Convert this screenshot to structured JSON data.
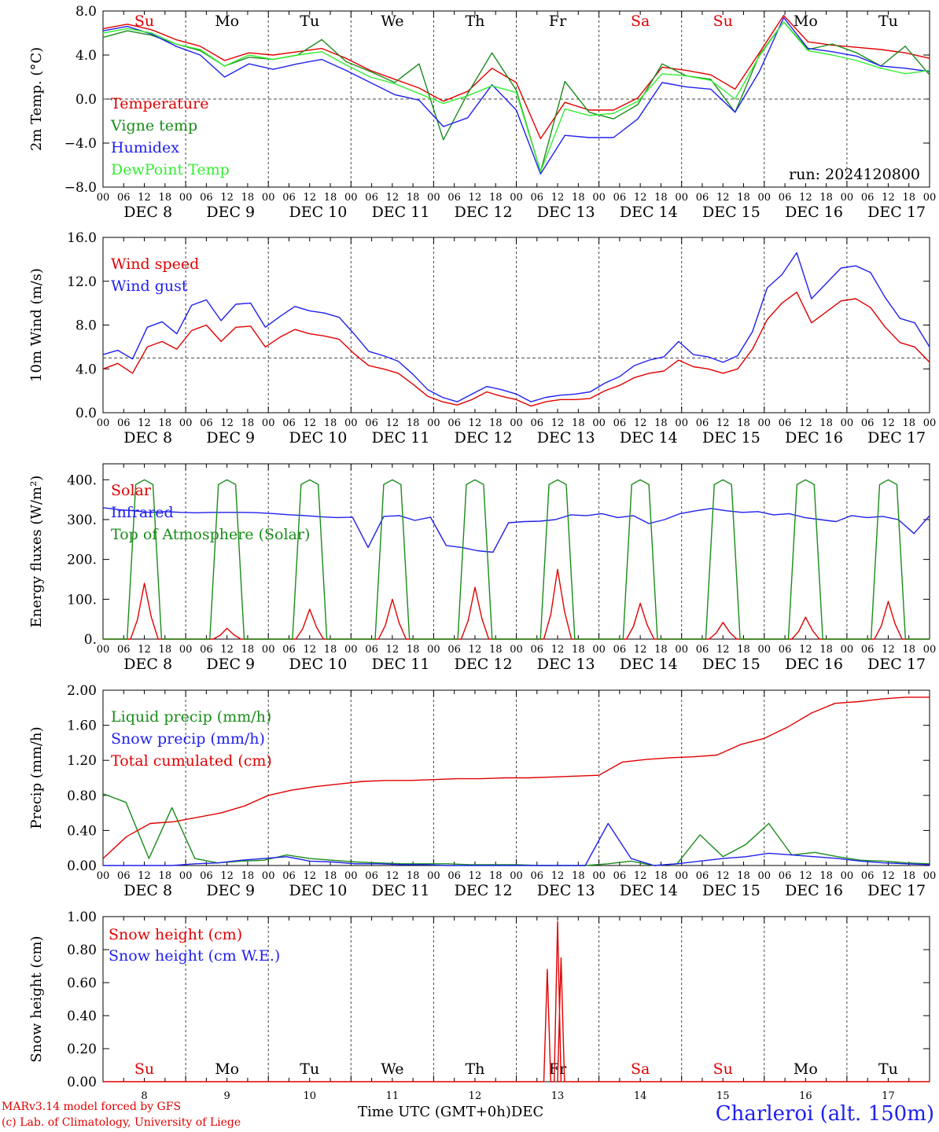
{
  "chart_data": [
    {
      "type": "line",
      "ylabel": "2m Temp. (°C)",
      "ylim": [
        -8,
        8
      ],
      "yticks": [
        "8.0",
        "4.0",
        "0.0",
        "−4.0",
        "−8.0"
      ],
      "ytick_values": [
        8,
        4,
        0,
        -4,
        -8
      ],
      "hline": 0,
      "annotation": "run: 2024120800",
      "weekday_labels": [
        "Su",
        "Mo",
        "Tu",
        "We",
        "Th",
        "Fr",
        "Sa",
        "Su",
        "Mo",
        "Tu"
      ],
      "x_hours": [
        0,
        6,
        12,
        18,
        24,
        30,
        36,
        42,
        48,
        54,
        60,
        66,
        72,
        78,
        84,
        90,
        96,
        102,
        108,
        114,
        120,
        126,
        132,
        138,
        144,
        150,
        156,
        162,
        168,
        174,
        180,
        186,
        192,
        198,
        204,
        210,
        216,
        222,
        228,
        234,
        240
      ],
      "series": [
        {
          "name": "Temperature",
          "color": "#e00000",
          "values": [
            6.4,
            6.8,
            6.3,
            5.4,
            4.8,
            3.5,
            4.2,
            4.0,
            4.3,
            4.6,
            3.7,
            2.6,
            1.8,
            1.0,
            -0.2,
            0.7,
            2.8,
            1.5,
            -3.6,
            -0.3,
            -1.0,
            -1.0,
            0.1,
            2.9,
            2.6,
            2.2,
            0.9,
            4.2,
            7.6,
            5.2,
            4.9,
            4.7,
            4.5,
            4.2,
            3.7
          ]
        },
        {
          "name": "Vigne temp",
          "color": "#1a8c1a",
          "values": [
            5.6,
            6.2,
            5.8,
            5.0,
            4.4,
            3.0,
            3.8,
            3.6,
            4.0,
            5.4,
            3.4,
            2.5,
            1.5,
            3.2,
            -3.7,
            0.5,
            4.2,
            0.8,
            -6.6,
            1.6,
            -1.2,
            -1.8,
            -0.5,
            3.2,
            2.1,
            1.8,
            -1.2,
            4.0,
            7.0,
            4.5,
            5.0,
            4.2,
            3.0,
            4.8,
            2.2
          ]
        },
        {
          "name": "Humidex",
          "color": "#2020ee",
          "values": [
            6.2,
            6.6,
            5.9,
            4.8,
            4.0,
            2.0,
            3.2,
            2.7,
            3.2,
            3.6,
            2.6,
            1.5,
            0.4,
            -0.1,
            -2.5,
            -1.7,
            1.3,
            -1.0,
            -6.8,
            -3.3,
            -3.5,
            -3.5,
            -1.8,
            1.5,
            1.1,
            0.9,
            -1.2,
            2.5,
            7.4,
            4.6,
            4.3,
            3.9,
            3.0,
            2.8,
            2.5
          ]
        },
        {
          "name": "DewPoint Temp",
          "color": "#33ee33",
          "values": [
            6.0,
            6.4,
            6.0,
            5.0,
            4.5,
            3.0,
            4.0,
            3.6,
            4.0,
            4.3,
            3.1,
            2.0,
            1.4,
            0.5,
            -0.4,
            0.3,
            1.2,
            0.6,
            -6.6,
            -0.9,
            -1.5,
            -1.3,
            -0.2,
            2.3,
            2.1,
            1.7,
            0.0,
            3.9,
            7.0,
            4.4,
            4.0,
            3.5,
            2.8,
            2.3,
            2.6
          ]
        }
      ]
    },
    {
      "type": "line",
      "ylabel": "10m Wind (m/s)",
      "ylim": [
        0,
        16
      ],
      "yticks": [
        "16.0",
        "12.0",
        "8.0",
        "4.0",
        "0.0"
      ],
      "ytick_values": [
        16,
        12,
        8,
        4,
        0
      ],
      "hline": 5,
      "series": [
        {
          "name": "Wind speed",
          "color": "#e00000",
          "values": [
            4.0,
            4.5,
            3.6,
            6.0,
            6.5,
            5.8,
            7.5,
            8.0,
            6.5,
            7.8,
            7.9,
            6.0,
            6.9,
            7.6,
            7.2,
            7.0,
            6.7,
            5.4,
            4.3,
            4.0,
            3.6,
            2.6,
            1.5,
            1.0,
            0.7,
            1.2,
            1.9,
            1.5,
            1.2,
            0.6,
            1.0,
            1.2,
            1.2,
            1.3,
            2.0,
            2.5,
            3.2,
            3.6,
            3.8,
            4.8,
            4.2,
            4.0,
            3.6,
            4.0,
            5.8,
            8.5,
            10.0,
            11.0,
            8.2,
            9.2,
            10.2,
            10.4,
            9.6,
            7.8,
            6.4,
            6.0,
            4.6
          ]
        },
        {
          "name": "Wind gust",
          "color": "#2020ee",
          "values": [
            5.3,
            5.7,
            4.9,
            7.8,
            8.3,
            7.2,
            9.8,
            10.3,
            8.4,
            9.9,
            10.0,
            7.8,
            8.8,
            9.7,
            9.3,
            9.1,
            8.7,
            7.2,
            5.6,
            5.2,
            4.7,
            3.5,
            2.1,
            1.4,
            1.0,
            1.7,
            2.4,
            2.1,
            1.7,
            1.0,
            1.4,
            1.6,
            1.7,
            1.9,
            2.7,
            3.3,
            4.3,
            4.8,
            5.1,
            6.5,
            5.3,
            5.1,
            4.6,
            5.2,
            7.4,
            11.4,
            12.6,
            14.6,
            10.4,
            11.8,
            13.2,
            13.4,
            12.8,
            10.5,
            8.6,
            8.2,
            6.0
          ]
        }
      ]
    },
    {
      "type": "line",
      "ylabel": "Energy fluxes (W/m²)",
      "ylim": [
        0,
        440
      ],
      "yticks": [
        "400.",
        "300.",
        "200.",
        "100.",
        "0."
      ],
      "ytick_values": [
        400,
        300,
        200,
        100,
        0
      ],
      "series": [
        {
          "name": "Solar",
          "color": "#e00000",
          "daily_peaks": [
            140,
            27,
            75,
            100,
            130,
            175,
            90,
            42,
            55,
            95
          ]
        },
        {
          "name": "Infrared",
          "color": "#2020ee",
          "values": [
            330,
            325,
            322,
            318,
            320,
            318,
            317,
            318,
            318,
            318,
            317,
            315,
            312,
            310,
            307,
            305,
            306,
            230,
            308,
            310,
            298,
            306,
            235,
            230,
            222,
            218,
            292,
            295,
            296,
            300,
            312,
            310,
            315,
            305,
            310,
            290,
            300,
            315,
            322,
            328,
            322,
            318,
            320,
            312,
            315,
            305,
            300,
            295,
            310,
            305,
            308,
            300,
            265,
            310
          ]
        },
        {
          "name": "Top of Atmosphere (Solar)",
          "color": "#1a8c1a",
          "daily_peak": 400
        }
      ]
    },
    {
      "type": "line",
      "ylabel": "Precip (mm/h)",
      "ylim": [
        0,
        2
      ],
      "yticks": [
        "2.00",
        "1.60",
        "1.20",
        "0.80",
        "0.40",
        "0.00"
      ],
      "ytick_values": [
        2.0,
        1.6,
        1.2,
        0.8,
        0.4,
        0.0
      ],
      "series": [
        {
          "name": "Liquid precip (mm/h)",
          "color": "#1a8c1a",
          "values": [
            0.82,
            0.72,
            0.08,
            0.66,
            0.08,
            0.03,
            0.05,
            0.06,
            0.12,
            0.08,
            0.06,
            0.04,
            0.03,
            0.02,
            0.02,
            0.02,
            0.01,
            0.01,
            0.01,
            0.0,
            0.0,
            0.0,
            0.02,
            0.05,
            0.0,
            0.02,
            0.35,
            0.1,
            0.24,
            0.48,
            0.12,
            0.15,
            0.1,
            0.06,
            0.05,
            0.03,
            0.02
          ]
        },
        {
          "name": "Snow precip (mm/h)",
          "color": "#2020ee",
          "values": [
            0.0,
            0.0,
            0.0,
            0.0,
            0.02,
            0.03,
            0.06,
            0.08,
            0.1,
            0.05,
            0.04,
            0.02,
            0.02,
            0.01,
            0.01,
            0.0,
            0.0,
            0.0,
            0.0,
            0.0,
            0.0,
            0.0,
            0.48,
            0.08,
            0.0,
            0.02,
            0.05,
            0.08,
            0.1,
            0.14,
            0.12,
            0.1,
            0.08,
            0.05,
            0.03,
            0.02,
            0.01
          ]
        },
        {
          "name": "Total cumulated (cm)",
          "color": "#e00000",
          "values": [
            0.08,
            0.33,
            0.48,
            0.5,
            0.55,
            0.6,
            0.68,
            0.8,
            0.86,
            0.9,
            0.93,
            0.96,
            0.97,
            0.97,
            0.98,
            0.99,
            0.99,
            1.0,
            1.0,
            1.01,
            1.02,
            1.03,
            1.18,
            1.21,
            1.23,
            1.24,
            1.26,
            1.38,
            1.45,
            1.58,
            1.74,
            1.85,
            1.87,
            1.9,
            1.92,
            1.92
          ]
        }
      ]
    },
    {
      "type": "line",
      "ylabel": "Snow height (cm)",
      "ylim": [
        0,
        1
      ],
      "yticks": [
        "1.00",
        "0.80",
        "0.60",
        "0.40",
        "0.20",
        "0.00"
      ],
      "ytick_values": [
        1.0,
        0.8,
        0.6,
        0.4,
        0.2,
        0.0
      ],
      "bottom_weekdays": [
        "Su",
        "Mo",
        "Tu",
        "We",
        "Th",
        "Fr",
        "Sa",
        "Su",
        "Mo",
        "Tu"
      ],
      "bottom_day_numbers": [
        "8",
        "9",
        "10",
        "11",
        "12",
        "13",
        "14",
        "15",
        "16",
        "17"
      ],
      "series": [
        {
          "name": "Snow height (cm)",
          "color": "#e00000",
          "spikes": [
            {
              "hour": 129,
              "value": 0.68
            },
            {
              "hour": 132,
              "value": 0.97
            },
            {
              "hour": 133,
              "value": 0.75
            }
          ]
        },
        {
          "name": "Snow height (cm W.E.)",
          "color": "#2020ee",
          "values": []
        }
      ]
    }
  ],
  "x_axis": {
    "hour_ticks": [
      "00",
      "06",
      "12",
      "18"
    ],
    "final_tick": "00",
    "dates": [
      "DEC  8",
      "DEC  9",
      "DEC 10",
      "DEC 11",
      "DEC 12",
      "DEC 13",
      "DEC 14",
      "DEC 15",
      "DEC 16",
      "DEC 17"
    ],
    "day_count": 10,
    "label": "Time UTC (GMT+0h)",
    "label_suffix": "DEC"
  },
  "weekday_colors": {
    "weekend": "#e00000",
    "weekday": "#000000"
  },
  "weekend_flags": [
    true,
    false,
    false,
    false,
    false,
    false,
    true,
    true,
    false,
    false
  ],
  "footer": {
    "credit_line1": "MARv3.14 model forced by GFS",
    "credit_line2": "(c) Lab. of Climatology, University of Liege",
    "station": "Charleroi (alt. 150m)"
  }
}
